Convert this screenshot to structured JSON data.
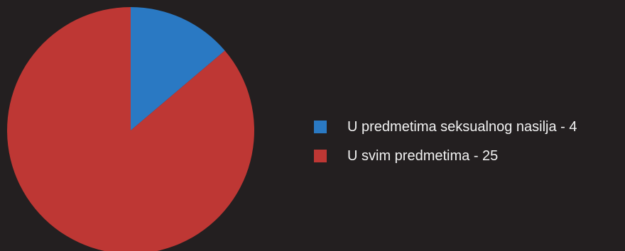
{
  "chart_data": {
    "type": "pie",
    "slices": [
      {
        "label": "U predmetima seksualnog nasilja - 4",
        "value": 4,
        "color": "#2a79c3"
      },
      {
        "label": "U svim predmetima - 25",
        "value": 25,
        "color": "#be3734"
      }
    ],
    "title": "",
    "legend_position": "right",
    "background": "#231f20"
  }
}
